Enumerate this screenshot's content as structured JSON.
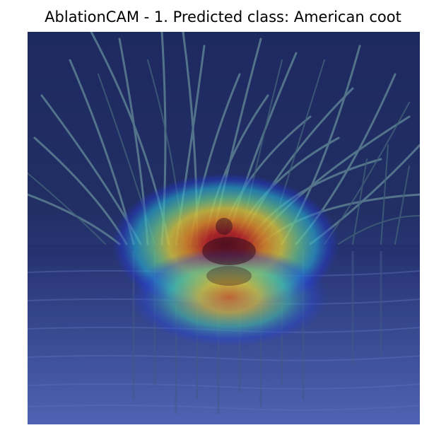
{
  "figure": {
    "title": "AblationCAM - 1. Predicted class: American coot"
  },
  "colors": {
    "background": "#ffffff",
    "scene_dark": "#1c2a55",
    "water": "#3a4f93",
    "reed": "#5f8a8c",
    "heatmap_hot": "#b01a10",
    "heatmap_warm": "#ffd01a",
    "heatmap_mid": "#3fe0c0",
    "heatmap_cool": "#2430d8"
  }
}
